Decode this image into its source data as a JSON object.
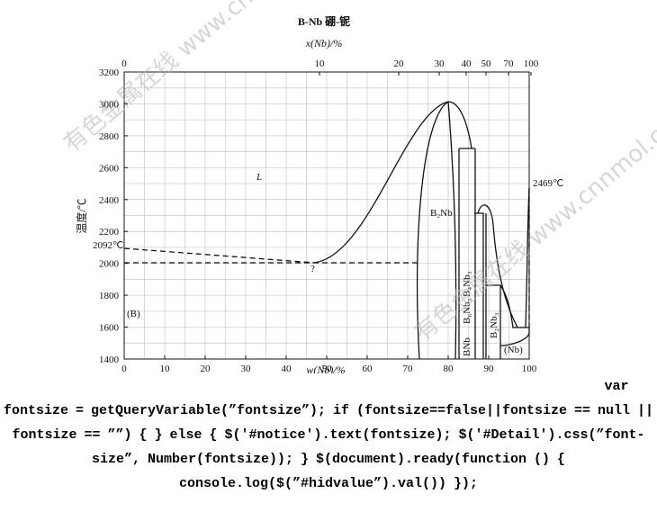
{
  "figure": {
    "title": "B-Nb   硼-铌",
    "top_axis": {
      "label": "x(Nb)/%",
      "ticks": [
        "0",
        "10",
        "20",
        "30",
        "40",
        "50",
        "70",
        "100"
      ]
    },
    "x_axis": {
      "label": "w(Nb)/%",
      "range": [
        0,
        100
      ],
      "ticks": [
        0,
        10,
        20,
        30,
        40,
        50,
        60,
        70,
        80,
        90,
        100
      ]
    },
    "y_axis": {
      "label": "温度/℃",
      "range": [
        1400,
        3200
      ],
      "ticks": [
        1400,
        1600,
        1800,
        2000,
        2200,
        2400,
        2600,
        2800,
        3000,
        3200
      ]
    },
    "annotations": {
      "liquid": "L",
      "b2nb": "B₂Nb",
      "question": "?",
      "b_melt": "2092℃",
      "nb_melt": "2469℃",
      "b_phase": "(B)",
      "nb_phase": "(Nb)",
      "bnb": "BNb",
      "b6nb5": "B₆Nb₅",
      "b4nb3": "B₄Nb₃",
      "b2nb3": "B₂Nb₃",
      "left_element": "B",
      "right_element": "Nb"
    }
  },
  "watermarks": [
    "有色金属在线 www.cnnmol.com",
    "有色金属在线 www.cnnmol.com"
  ],
  "code": "var fontsize = getQueryVariable(”fontsize”); if (fontsize==false||fontsize == null || fontsize == ””) { } else { $('#notice').text(fontsize); $('#Detail').css(”font-size”, Number(fontsize)); } $(document).ready(function () { console.log($(”#hidvalue”).val()) });"
}
